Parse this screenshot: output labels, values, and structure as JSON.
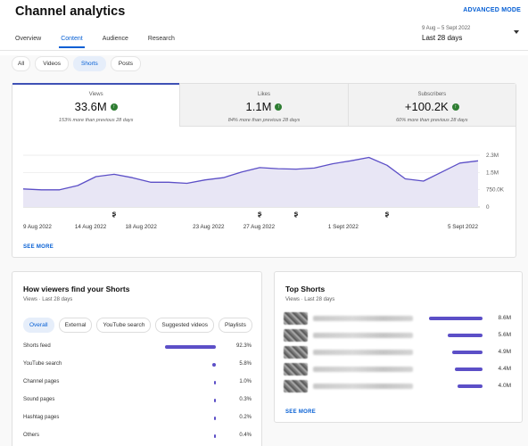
{
  "header": {
    "title": "Channel analytics",
    "advanced_mode": "ADVANCED MODE",
    "tabs": [
      {
        "label": "Overview"
      },
      {
        "label": "Content"
      },
      {
        "label": "Research"
      },
      {
        "label": "Audience"
      }
    ],
    "active_tab": "Content",
    "date_range": "9 Aug – 5 Sept 2022",
    "date_label": "Last 28 days"
  },
  "filters": {
    "chips": [
      {
        "label": "All"
      },
      {
        "label": "Videos"
      },
      {
        "label": "Shorts"
      },
      {
        "label": "Posts"
      }
    ],
    "selected": "Shorts"
  },
  "metrics": [
    {
      "label": "Views",
      "value": "33.6M",
      "sub": "153% more than previous 28 days",
      "icon": "arrow-up-icon"
    },
    {
      "label": "Likes",
      "value": "1.1M",
      "sub": "84% more than previous 28 days",
      "icon": "arrow-up-icon"
    },
    {
      "label": "Subscribers",
      "value": "+100.2K",
      "sub": "60% more than previous 28 days",
      "icon": "arrow-up-icon"
    }
  ],
  "chart_data": {
    "type": "area",
    "series": [
      {
        "values": [
          0.8,
          0.76,
          0.76,
          0.95,
          1.35,
          1.45,
          1.3,
          1.1,
          1.1,
          1.05,
          1.2,
          1.3,
          1.55,
          1.75,
          1.7,
          1.68,
          1.73,
          1.92,
          2.05,
          2.2,
          1.85,
          1.25,
          1.15,
          1.55,
          1.95,
          2.05
        ]
      }
    ],
    "x_tick_labels": [
      "9 Aug 2022",
      "14 Aug 2022",
      "18 Aug 2022",
      "23 Aug 2022",
      "27 Aug 2022",
      "1 Sept 2022",
      "5 Sept 2022"
    ],
    "y_tick_labels": [
      "2.3M",
      "1.5M",
      "750.0K",
      "0"
    ],
    "ylim": [
      0,
      2.3
    ],
    "fill_color": "#e8e6f5",
    "line_color": "#5c4fc7",
    "marker_icon": "shorts-icon",
    "marker_days": [
      5,
      13,
      15,
      20
    ]
  },
  "main_see_more": "SEE MORE",
  "discovery": {
    "title": "How viewers find your Shorts",
    "subtitle": "Views · Last 28 days",
    "chips": [
      {
        "label": "Overall"
      },
      {
        "label": "External"
      },
      {
        "label": "YouTube search"
      },
      {
        "label": "Suggested videos"
      },
      {
        "label": "Playlists"
      }
    ],
    "selected": "Overall",
    "rows": [
      {
        "label": "Shorts feed",
        "pct": "92.3%",
        "share": 0.923
      },
      {
        "label": "YouTube search",
        "pct": "5.8%",
        "share": 0.058
      },
      {
        "label": "Channel pages",
        "pct": "1.0%",
        "share": 0.01
      },
      {
        "label": "Sound pages",
        "pct": "0.3%",
        "share": 0.003
      },
      {
        "label": "Hashtag pages",
        "pct": "0.2%",
        "share": 0.002
      },
      {
        "label": "Others",
        "pct": "0.4%",
        "share": 0.004
      }
    ]
  },
  "top_shorts": {
    "title": "Top Shorts",
    "subtitle": "Views · Last 28 days",
    "see_more": "SEE MORE",
    "rows": [
      {
        "views": "8.6M",
        "share": 1.0
      },
      {
        "views": "5.6M",
        "share": 0.65
      },
      {
        "views": "4.9M",
        "share": 0.57
      },
      {
        "views": "4.4M",
        "share": 0.51
      },
      {
        "views": "4.0M",
        "share": 0.465
      }
    ]
  }
}
